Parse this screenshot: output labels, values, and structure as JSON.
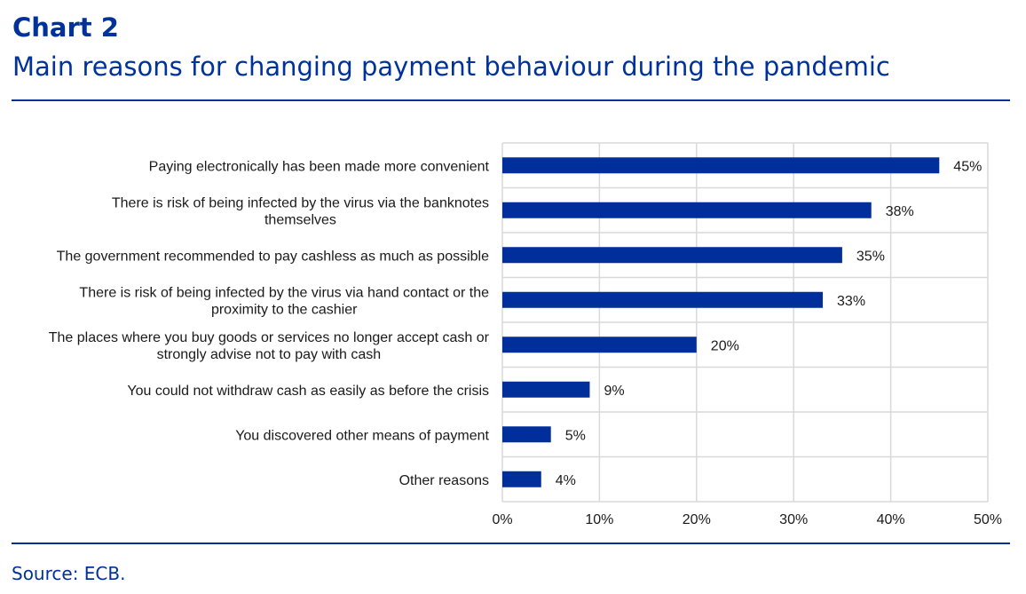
{
  "header": {
    "chart_number": "Chart 2",
    "title": "Main reasons for changing payment behaviour during the pandemic"
  },
  "footer": {
    "source": "Source: ECB."
  },
  "colors": {
    "bar": "#002f9c",
    "accent": "#003299",
    "grid": "#d9d9d9"
  },
  "chart_data": {
    "type": "bar",
    "orientation": "horizontal",
    "categories": [
      [
        "Paying electronically has been made more convenient"
      ],
      [
        "There is risk of being infected by the virus via the banknotes",
        "themselves"
      ],
      [
        "The government recommended to pay cashless as much as possible"
      ],
      [
        "There is risk of being infected by the virus via hand contact or the",
        "proximity to the cashier"
      ],
      [
        "The places where you buy goods or services no longer accept cash or",
        "strongly advise not to pay with cash"
      ],
      [
        "You could not withdraw cash as easily as before the crisis"
      ],
      [
        "You discovered other means of payment"
      ],
      [
        "Other reasons"
      ]
    ],
    "values": [
      45,
      38,
      35,
      33,
      20,
      9,
      5,
      4
    ],
    "value_labels": [
      "45%",
      "38%",
      "35%",
      "33%",
      "20%",
      "9%",
      "5%",
      "4%"
    ],
    "xlim": [
      0,
      50
    ],
    "x_ticks": [
      0,
      10,
      20,
      30,
      40,
      50
    ],
    "x_tick_labels": [
      "0%",
      "10%",
      "20%",
      "30%",
      "40%",
      "50%"
    ],
    "grid": true,
    "legend": "none"
  }
}
